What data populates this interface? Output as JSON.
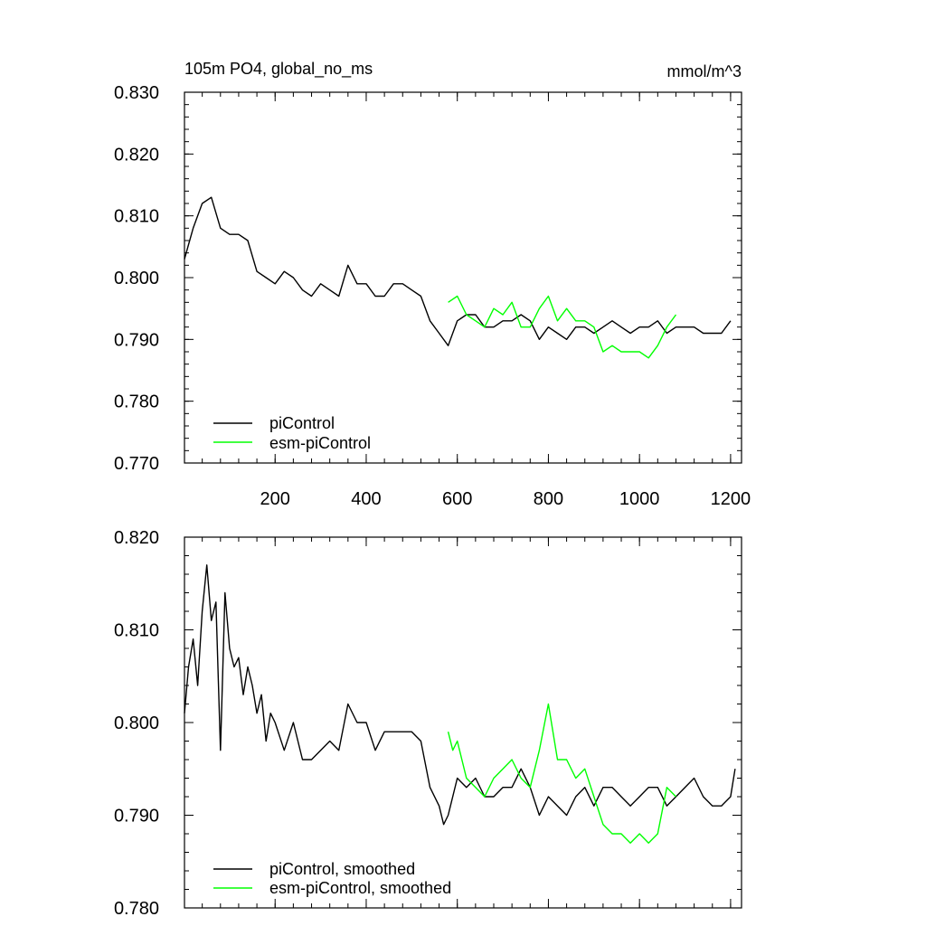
{
  "chart_data": [
    {
      "type": "line",
      "title": "105m PO4, global_no_ms",
      "units": "mmol/m^3",
      "xlim": [
        1,
        1224
      ],
      "ylim": [
        0.77,
        0.83
      ],
      "x_ticks": [
        200,
        400,
        600,
        800,
        1000,
        1200
      ],
      "x_tick_labels": [
        "200",
        "400",
        "600",
        "800",
        "1000",
        "1200"
      ],
      "y_ticks": [
        0.77,
        0.78,
        0.79,
        0.8,
        0.81,
        0.82,
        0.83
      ],
      "y_tick_labels": [
        "0.770",
        "0.780",
        "0.790",
        "0.800",
        "0.810",
        "0.820",
        "0.830"
      ],
      "legend_position": "bottom-left",
      "grid": false,
      "series": [
        {
          "name": "piControl",
          "color": "#000000",
          "x": [
            1,
            20,
            40,
            60,
            80,
            100,
            120,
            140,
            160,
            180,
            200,
            220,
            240,
            260,
            280,
            300,
            320,
            340,
            360,
            380,
            400,
            420,
            440,
            460,
            480,
            500,
            520,
            540,
            560,
            580,
            600,
            620,
            640,
            660,
            680,
            700,
            720,
            740,
            760,
            780,
            800,
            820,
            840,
            860,
            880,
            900,
            920,
            940,
            960,
            980,
            1000,
            1020,
            1040,
            1060,
            1080,
            1100,
            1120,
            1140,
            1160,
            1180,
            1200
          ],
          "y": [
            0.803,
            0.808,
            0.812,
            0.813,
            0.808,
            0.807,
            0.807,
            0.806,
            0.801,
            0.8,
            0.799,
            0.801,
            0.8,
            0.798,
            0.797,
            0.799,
            0.798,
            0.797,
            0.802,
            0.799,
            0.799,
            0.797,
            0.797,
            0.799,
            0.799,
            0.798,
            0.797,
            0.793,
            0.791,
            0.789,
            0.793,
            0.794,
            0.794,
            0.792,
            0.792,
            0.793,
            0.793,
            0.794,
            0.793,
            0.79,
            0.792,
            0.791,
            0.79,
            0.792,
            0.792,
            0.791,
            0.792,
            0.793,
            0.792,
            0.791,
            0.792,
            0.792,
            0.793,
            0.791,
            0.792,
            0.792,
            0.792,
            0.791,
            0.791,
            0.791,
            0.793
          ]
        },
        {
          "name": "esm-piControl",
          "color": "#00ff00",
          "x": [
            580,
            600,
            620,
            640,
            660,
            680,
            700,
            720,
            740,
            760,
            780,
            800,
            820,
            840,
            860,
            880,
            900,
            920,
            940,
            960,
            980,
            1000,
            1020,
            1040,
            1060,
            1080
          ],
          "y": [
            0.796,
            0.797,
            0.794,
            0.793,
            0.792,
            0.795,
            0.794,
            0.796,
            0.792,
            0.792,
            0.795,
            0.797,
            0.793,
            0.795,
            0.793,
            0.793,
            0.792,
            0.788,
            0.789,
            0.788,
            0.788,
            0.788,
            0.787,
            0.789,
            0.792,
            0.794
          ]
        }
      ]
    },
    {
      "type": "line",
      "title": "",
      "units": "",
      "xlim": [
        1,
        1224
      ],
      "ylim": [
        0.78,
        0.82
      ],
      "x_ticks": [
        200,
        400,
        600,
        800,
        1000,
        1200
      ],
      "x_tick_labels": [],
      "y_ticks": [
        0.78,
        0.79,
        0.8,
        0.81,
        0.82
      ],
      "y_tick_labels": [
        "0.780",
        "0.790",
        "0.800",
        "0.810",
        "0.820"
      ],
      "legend_position": "bottom-left",
      "grid": false,
      "series": [
        {
          "name": "piControl, smoothed",
          "color": "#000000",
          "x": [
            1,
            10,
            20,
            30,
            40,
            50,
            60,
            70,
            80,
            90,
            100,
            110,
            120,
            130,
            140,
            150,
            160,
            170,
            180,
            190,
            200,
            220,
            240,
            260,
            280,
            300,
            320,
            340,
            360,
            380,
            400,
            420,
            440,
            460,
            480,
            500,
            520,
            540,
            560,
            570,
            580,
            600,
            620,
            640,
            660,
            680,
            700,
            720,
            740,
            760,
            780,
            800,
            820,
            840,
            860,
            880,
            900,
            920,
            940,
            960,
            980,
            1000,
            1020,
            1040,
            1060,
            1080,
            1100,
            1120,
            1140,
            1160,
            1180,
            1200,
            1210
          ],
          "y": [
            0.801,
            0.806,
            0.809,
            0.804,
            0.812,
            0.817,
            0.811,
            0.813,
            0.797,
            0.814,
            0.808,
            0.806,
            0.807,
            0.803,
            0.806,
            0.804,
            0.801,
            0.803,
            0.798,
            0.801,
            0.8,
            0.797,
            0.8,
            0.796,
            0.796,
            0.797,
            0.798,
            0.797,
            0.802,
            0.8,
            0.8,
            0.797,
            0.799,
            0.799,
            0.799,
            0.799,
            0.798,
            0.793,
            0.791,
            0.789,
            0.79,
            0.794,
            0.793,
            0.794,
            0.792,
            0.792,
            0.793,
            0.793,
            0.795,
            0.793,
            0.79,
            0.792,
            0.791,
            0.79,
            0.792,
            0.793,
            0.791,
            0.793,
            0.793,
            0.792,
            0.791,
            0.792,
            0.793,
            0.793,
            0.791,
            0.792,
            0.793,
            0.794,
            0.792,
            0.791,
            0.791,
            0.792,
            0.795
          ]
        },
        {
          "name": "esm-piControl, smoothed",
          "color": "#00ff00",
          "x": [
            580,
            590,
            600,
            620,
            640,
            660,
            680,
            700,
            720,
            740,
            760,
            780,
            800,
            820,
            840,
            860,
            880,
            900,
            920,
            940,
            960,
            980,
            1000,
            1020,
            1040,
            1060,
            1080
          ],
          "y": [
            0.799,
            0.797,
            0.798,
            0.794,
            0.793,
            0.792,
            0.794,
            0.795,
            0.796,
            0.794,
            0.793,
            0.797,
            0.802,
            0.796,
            0.796,
            0.794,
            0.795,
            0.792,
            0.789,
            0.788,
            0.788,
            0.787,
            0.788,
            0.787,
            0.788,
            0.793,
            0.792
          ]
        }
      ]
    }
  ]
}
